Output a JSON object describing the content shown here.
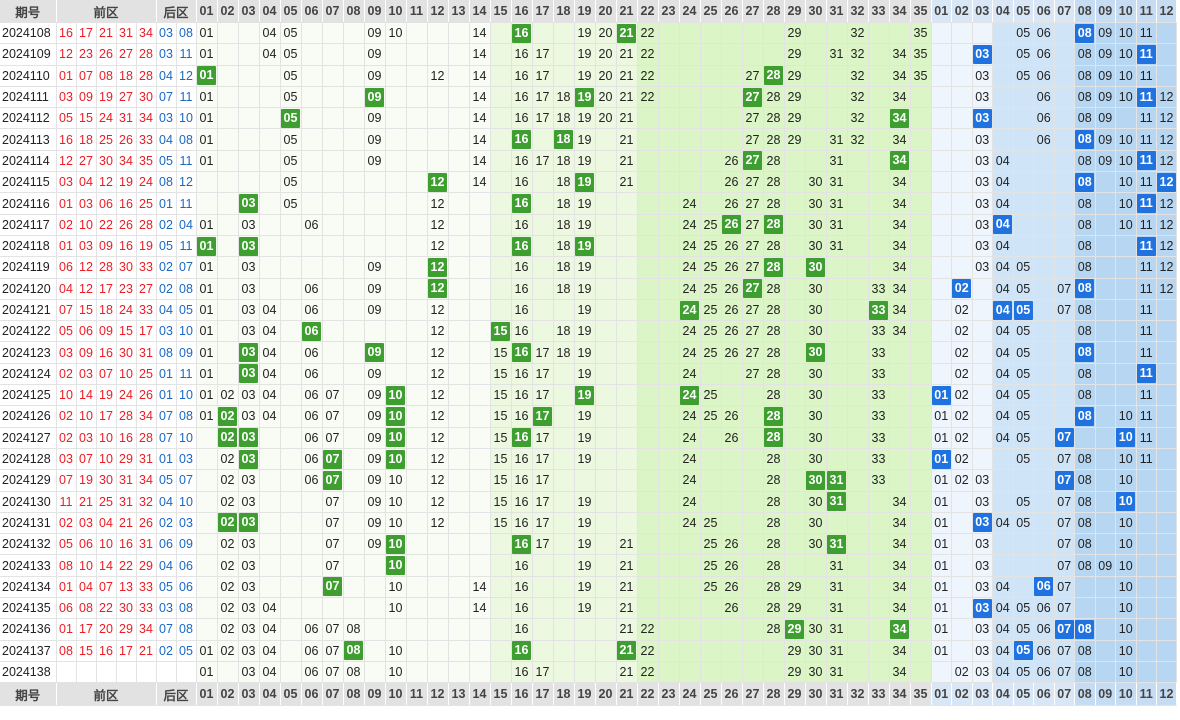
{
  "header": {
    "period": "期号",
    "front": "前区",
    "back": "后区"
  },
  "front_numbers": [
    "01",
    "02",
    "03",
    "04",
    "05",
    "06",
    "07",
    "08",
    "09",
    "10",
    "11",
    "12",
    "13",
    "14",
    "15",
    "16",
    "17",
    "18",
    "19",
    "20",
    "21",
    "22",
    "23",
    "24",
    "25",
    "26",
    "27",
    "28",
    "29",
    "30",
    "31",
    "32",
    "33",
    "34",
    "35"
  ],
  "back_numbers": [
    "01",
    "02",
    "03",
    "04",
    "05",
    "06",
    "07",
    "08",
    "09",
    "10",
    "11",
    "12"
  ],
  "draws": [
    {
      "period": "2024108",
      "front": [
        "16",
        "17",
        "21",
        "31",
        "34"
      ],
      "back": [
        "03",
        "08"
      ],
      "fd": [
        "01",
        "04",
        "05",
        "09",
        "10",
        "14",
        "16",
        "19",
        "20",
        "21",
        "22",
        "29",
        "32",
        "35"
      ],
      "fh": [
        "16",
        "21"
      ],
      "bd": [
        "05",
        "06",
        "08",
        "09",
        "10",
        "11"
      ],
      "bh": [
        "08"
      ]
    },
    {
      "period": "2024109",
      "front": [
        "12",
        "23",
        "26",
        "27",
        "28"
      ],
      "back": [
        "03",
        "11"
      ],
      "fd": [
        "01",
        "04",
        "05",
        "09",
        "14",
        "16",
        "17",
        "19",
        "20",
        "21",
        "22",
        "29",
        "31",
        "32",
        "34",
        "35"
      ],
      "fh": [],
      "bd": [
        "03",
        "05",
        "06",
        "08",
        "09",
        "10",
        "11"
      ],
      "bh": [
        "03",
        "11"
      ]
    },
    {
      "period": "2024110",
      "front": [
        "01",
        "07",
        "08",
        "18",
        "28"
      ],
      "back": [
        "04",
        "12"
      ],
      "fd": [
        "01",
        "05",
        "09",
        "12",
        "14",
        "16",
        "17",
        "19",
        "20",
        "21",
        "22",
        "27",
        "28",
        "29",
        "32",
        "34",
        "35"
      ],
      "fh": [
        "01",
        "28"
      ],
      "bd": [
        "03",
        "05",
        "06",
        "08",
        "09",
        "10",
        "11"
      ],
      "bh": []
    },
    {
      "period": "2024111",
      "front": [
        "03",
        "09",
        "19",
        "27",
        "30"
      ],
      "back": [
        "07",
        "11"
      ],
      "fd": [
        "01",
        "05",
        "09",
        "14",
        "16",
        "17",
        "18",
        "19",
        "20",
        "21",
        "22",
        "27",
        "28",
        "29",
        "32",
        "34"
      ],
      "fh": [
        "09",
        "19",
        "27"
      ],
      "bd": [
        "03",
        "06",
        "08",
        "09",
        "10",
        "11",
        "12"
      ],
      "bh": [
        "11"
      ]
    },
    {
      "period": "2024112",
      "front": [
        "05",
        "15",
        "24",
        "31",
        "34"
      ],
      "back": [
        "03",
        "10"
      ],
      "fd": [
        "01",
        "05",
        "09",
        "14",
        "16",
        "17",
        "18",
        "19",
        "20",
        "21",
        "27",
        "28",
        "29",
        "32",
        "34"
      ],
      "fh": [
        "05",
        "34"
      ],
      "bd": [
        "03",
        "06",
        "08",
        "09",
        "11",
        "12"
      ],
      "bh": [
        "03"
      ]
    },
    {
      "period": "2024113",
      "front": [
        "16",
        "18",
        "25",
        "26",
        "33"
      ],
      "back": [
        "04",
        "08"
      ],
      "fd": [
        "01",
        "05",
        "09",
        "14",
        "16",
        "18",
        "19",
        "21",
        "27",
        "28",
        "29",
        "31",
        "32",
        "34"
      ],
      "fh": [
        "16",
        "18"
      ],
      "bd": [
        "03",
        "06",
        "08",
        "09",
        "10",
        "11",
        "12"
      ],
      "bh": [
        "08"
      ]
    },
    {
      "period": "2024114",
      "front": [
        "12",
        "27",
        "30",
        "34",
        "35"
      ],
      "back": [
        "05",
        "11"
      ],
      "fd": [
        "01",
        "05",
        "09",
        "14",
        "16",
        "17",
        "18",
        "19",
        "21",
        "26",
        "27",
        "28",
        "31",
        "34"
      ],
      "fh": [
        "27",
        "34"
      ],
      "bd": [
        "03",
        "04",
        "08",
        "09",
        "10",
        "11",
        "12"
      ],
      "bh": [
        "11"
      ]
    },
    {
      "period": "2024115",
      "front": [
        "03",
        "04",
        "12",
        "19",
        "24"
      ],
      "back": [
        "08",
        "12"
      ],
      "fd": [
        "05",
        "12",
        "14",
        "16",
        "18",
        "19",
        "21",
        "26",
        "27",
        "28",
        "30",
        "31",
        "34"
      ],
      "fh": [
        "12",
        "19"
      ],
      "bd": [
        "03",
        "04",
        "08",
        "10",
        "11",
        "12"
      ],
      "bh": [
        "08",
        "12"
      ]
    },
    {
      "period": "2024116",
      "front": [
        "01",
        "03",
        "06",
        "16",
        "25"
      ],
      "back": [
        "01",
        "11"
      ],
      "fd": [
        "03",
        "05",
        "12",
        "16",
        "18",
        "19",
        "24",
        "26",
        "27",
        "28",
        "30",
        "31",
        "34"
      ],
      "fh": [
        "03",
        "16"
      ],
      "bd": [
        "03",
        "04",
        "08",
        "10",
        "11",
        "12"
      ],
      "bh": [
        "11"
      ]
    },
    {
      "period": "2024117",
      "front": [
        "02",
        "10",
        "22",
        "26",
        "28"
      ],
      "back": [
        "02",
        "04"
      ],
      "fd": [
        "01",
        "03",
        "06",
        "12",
        "16",
        "18",
        "19",
        "24",
        "25",
        "26",
        "27",
        "28",
        "30",
        "31",
        "34"
      ],
      "fh": [
        "26",
        "28"
      ],
      "bd": [
        "03",
        "04",
        "08",
        "10",
        "11",
        "12"
      ],
      "bh": [
        "04"
      ]
    },
    {
      "period": "2024118",
      "front": [
        "01",
        "03",
        "09",
        "16",
        "19"
      ],
      "back": [
        "05",
        "11"
      ],
      "fd": [
        "01",
        "03",
        "12",
        "16",
        "18",
        "19",
        "24",
        "25",
        "26",
        "27",
        "28",
        "30",
        "31",
        "34"
      ],
      "fh": [
        "01",
        "03",
        "16",
        "19"
      ],
      "bd": [
        "03",
        "04",
        "08",
        "11",
        "12"
      ],
      "bh": [
        "11"
      ]
    },
    {
      "period": "2024119",
      "front": [
        "06",
        "12",
        "28",
        "30",
        "33"
      ],
      "back": [
        "02",
        "07"
      ],
      "fd": [
        "01",
        "03",
        "09",
        "12",
        "16",
        "18",
        "19",
        "24",
        "25",
        "26",
        "27",
        "28",
        "30",
        "34"
      ],
      "fh": [
        "12",
        "28",
        "30"
      ],
      "bd": [
        "03",
        "04",
        "05",
        "08",
        "11",
        "12"
      ],
      "bh": []
    },
    {
      "period": "2024120",
      "front": [
        "04",
        "12",
        "17",
        "23",
        "27"
      ],
      "back": [
        "02",
        "08"
      ],
      "fd": [
        "01",
        "03",
        "06",
        "09",
        "12",
        "16",
        "18",
        "19",
        "24",
        "25",
        "26",
        "27",
        "28",
        "30",
        "33",
        "34"
      ],
      "fh": [
        "12",
        "27"
      ],
      "bd": [
        "02",
        "04",
        "05",
        "07",
        "08",
        "11",
        "12"
      ],
      "bh": [
        "02",
        "08"
      ]
    },
    {
      "period": "2024121",
      "front": [
        "07",
        "15",
        "18",
        "24",
        "33"
      ],
      "back": [
        "04",
        "05"
      ],
      "fd": [
        "01",
        "03",
        "04",
        "06",
        "09",
        "12",
        "16",
        "19",
        "24",
        "25",
        "26",
        "27",
        "28",
        "30",
        "33",
        "34"
      ],
      "fh": [
        "24",
        "33"
      ],
      "bd": [
        "02",
        "04",
        "05",
        "07",
        "08",
        "11"
      ],
      "bh": [
        "04",
        "05"
      ]
    },
    {
      "period": "2024122",
      "front": [
        "05",
        "06",
        "09",
        "15",
        "17"
      ],
      "back": [
        "03",
        "10"
      ],
      "fd": [
        "01",
        "03",
        "04",
        "06",
        "12",
        "15",
        "16",
        "18",
        "19",
        "24",
        "25",
        "26",
        "27",
        "28",
        "30",
        "33",
        "34"
      ],
      "fh": [
        "06",
        "15"
      ],
      "bd": [
        "02",
        "04",
        "05",
        "08",
        "11"
      ],
      "bh": []
    },
    {
      "period": "2024123",
      "front": [
        "03",
        "09",
        "16",
        "30",
        "31"
      ],
      "back": [
        "08",
        "09"
      ],
      "fd": [
        "01",
        "03",
        "04",
        "06",
        "09",
        "12",
        "15",
        "16",
        "17",
        "18",
        "19",
        "24",
        "25",
        "26",
        "27",
        "28",
        "30",
        "33"
      ],
      "fh": [
        "03",
        "09",
        "16",
        "30"
      ],
      "bd": [
        "02",
        "04",
        "05",
        "08",
        "11"
      ],
      "bh": [
        "08"
      ]
    },
    {
      "period": "2024124",
      "front": [
        "02",
        "03",
        "07",
        "10",
        "25"
      ],
      "back": [
        "01",
        "11"
      ],
      "fd": [
        "01",
        "03",
        "04",
        "06",
        "09",
        "12",
        "15",
        "16",
        "17",
        "19",
        "24",
        "27",
        "28",
        "30",
        "33"
      ],
      "fh": [
        "03"
      ],
      "bd": [
        "02",
        "04",
        "05",
        "08",
        "11"
      ],
      "bh": [
        "11"
      ]
    },
    {
      "period": "2024125",
      "front": [
        "10",
        "14",
        "19",
        "24",
        "26"
      ],
      "back": [
        "01",
        "10"
      ],
      "fd": [
        "01",
        "02",
        "03",
        "04",
        "06",
        "07",
        "09",
        "10",
        "12",
        "15",
        "16",
        "17",
        "19",
        "24",
        "25",
        "28",
        "30",
        "33"
      ],
      "fh": [
        "10",
        "19",
        "24"
      ],
      "bd": [
        "01",
        "02",
        "04",
        "05",
        "08",
        "11"
      ],
      "bh": [
        "01"
      ]
    },
    {
      "period": "2024126",
      "front": [
        "02",
        "10",
        "17",
        "28",
        "34"
      ],
      "back": [
        "07",
        "08"
      ],
      "fd": [
        "01",
        "02",
        "03",
        "04",
        "06",
        "07",
        "09",
        "10",
        "12",
        "15",
        "16",
        "17",
        "19",
        "24",
        "25",
        "26",
        "28",
        "30",
        "33"
      ],
      "fh": [
        "02",
        "10",
        "17",
        "28"
      ],
      "bd": [
        "01",
        "02",
        "04",
        "05",
        "08",
        "10",
        "11"
      ],
      "bh": [
        "08"
      ]
    },
    {
      "period": "2024127",
      "front": [
        "02",
        "03",
        "10",
        "16",
        "28"
      ],
      "back": [
        "07",
        "10"
      ],
      "fd": [
        "02",
        "03",
        "06",
        "07",
        "09",
        "10",
        "12",
        "15",
        "16",
        "17",
        "19",
        "24",
        "26",
        "28",
        "30",
        "33"
      ],
      "fh": [
        "02",
        "03",
        "10",
        "16",
        "28"
      ],
      "bd": [
        "01",
        "02",
        "04",
        "05",
        "07",
        "10",
        "11"
      ],
      "bh": [
        "07",
        "10"
      ]
    },
    {
      "period": "2024128",
      "front": [
        "03",
        "07",
        "10",
        "29",
        "31"
      ],
      "back": [
        "01",
        "03"
      ],
      "fd": [
        "02",
        "03",
        "06",
        "07",
        "09",
        "10",
        "12",
        "15",
        "16",
        "17",
        "19",
        "24",
        "28",
        "30",
        "33"
      ],
      "fh": [
        "03",
        "07",
        "10"
      ],
      "bd": [
        "01",
        "02",
        "05",
        "07",
        "08",
        "10",
        "11"
      ],
      "bh": [
        "01"
      ]
    },
    {
      "period": "2024129",
      "front": [
        "07",
        "19",
        "30",
        "31",
        "34"
      ],
      "back": [
        "05",
        "07"
      ],
      "fd": [
        "02",
        "03",
        "06",
        "07",
        "09",
        "10",
        "12",
        "15",
        "16",
        "17",
        "24",
        "28",
        "30",
        "31",
        "33"
      ],
      "fh": [
        "07",
        "30",
        "31"
      ],
      "bd": [
        "01",
        "02",
        "03",
        "07",
        "08",
        "10"
      ],
      "bh": [
        "07"
      ]
    },
    {
      "period": "2024130",
      "front": [
        "11",
        "21",
        "25",
        "31",
        "32"
      ],
      "back": [
        "04",
        "10"
      ],
      "fd": [
        "02",
        "03",
        "07",
        "09",
        "10",
        "12",
        "15",
        "16",
        "17",
        "19",
        "24",
        "28",
        "30",
        "31",
        "34"
      ],
      "fh": [
        "31"
      ],
      "bd": [
        "01",
        "03",
        "05",
        "07",
        "08",
        "10"
      ],
      "bh": [
        "10"
      ]
    },
    {
      "period": "2024131",
      "front": [
        "02",
        "03",
        "04",
        "21",
        "26"
      ],
      "back": [
        "02",
        "03"
      ],
      "fd": [
        "02",
        "03",
        "07",
        "09",
        "10",
        "12",
        "15",
        "16",
        "17",
        "19",
        "24",
        "25",
        "28",
        "30",
        "34"
      ],
      "fh": [
        "02",
        "03"
      ],
      "bd": [
        "01",
        "03",
        "04",
        "05",
        "07",
        "08",
        "10"
      ],
      "bh": [
        "03"
      ]
    },
    {
      "period": "2024132",
      "front": [
        "05",
        "06",
        "10",
        "16",
        "31"
      ],
      "back": [
        "06",
        "09"
      ],
      "fd": [
        "02",
        "03",
        "07",
        "09",
        "10",
        "16",
        "17",
        "19",
        "21",
        "25",
        "26",
        "28",
        "30",
        "31",
        "34"
      ],
      "fh": [
        "10",
        "16",
        "31"
      ],
      "bd": [
        "01",
        "03",
        "07",
        "08",
        "10"
      ],
      "bh": []
    },
    {
      "period": "2024133",
      "front": [
        "08",
        "10",
        "14",
        "22",
        "29"
      ],
      "back": [
        "04",
        "06"
      ],
      "fd": [
        "02",
        "03",
        "07",
        "10",
        "16",
        "19",
        "21",
        "25",
        "26",
        "28",
        "31",
        "34"
      ],
      "fh": [
        "10"
      ],
      "bd": [
        "01",
        "03",
        "07",
        "08",
        "09",
        "10"
      ],
      "bh": []
    },
    {
      "period": "2024134",
      "front": [
        "01",
        "04",
        "07",
        "13",
        "33"
      ],
      "back": [
        "05",
        "06"
      ],
      "fd": [
        "02",
        "03",
        "07",
        "10",
        "14",
        "16",
        "19",
        "21",
        "25",
        "26",
        "28",
        "29",
        "31",
        "34"
      ],
      "fh": [
        "07"
      ],
      "bd": [
        "01",
        "03",
        "04",
        "06",
        "07",
        "10"
      ],
      "bh": [
        "06"
      ]
    },
    {
      "period": "2024135",
      "front": [
        "06",
        "08",
        "22",
        "30",
        "33"
      ],
      "back": [
        "03",
        "08"
      ],
      "fd": [
        "02",
        "03",
        "04",
        "10",
        "14",
        "16",
        "19",
        "21",
        "26",
        "28",
        "29",
        "31",
        "34"
      ],
      "fh": [],
      "bd": [
        "01",
        "03",
        "04",
        "05",
        "06",
        "07",
        "10"
      ],
      "bh": [
        "03"
      ]
    },
    {
      "period": "2024136",
      "front": [
        "01",
        "17",
        "20",
        "29",
        "34"
      ],
      "back": [
        "07",
        "08"
      ],
      "fd": [
        "02",
        "03",
        "04",
        "06",
        "07",
        "08",
        "16",
        "21",
        "22",
        "28",
        "29",
        "30",
        "31",
        "34"
      ],
      "fh": [
        "29",
        "34"
      ],
      "bd": [
        "01",
        "03",
        "04",
        "05",
        "06",
        "07",
        "08",
        "10"
      ],
      "bh": [
        "07",
        "08"
      ]
    },
    {
      "period": "2024137",
      "front": [
        "08",
        "15",
        "16",
        "17",
        "21"
      ],
      "back": [
        "02",
        "05"
      ],
      "fd": [
        "01",
        "02",
        "03",
        "04",
        "06",
        "07",
        "08",
        "10",
        "16",
        "21",
        "22",
        "29",
        "30",
        "31",
        "34"
      ],
      "fh": [
        "08",
        "16",
        "21"
      ],
      "bd": [
        "01",
        "03",
        "04",
        "05",
        "06",
        "07",
        "08",
        "10"
      ],
      "bh": [
        "05"
      ]
    },
    {
      "period": "2024138",
      "front": [],
      "back": [],
      "fd": [
        "01",
        "03",
        "04",
        "06",
        "07",
        "08",
        "10",
        "16",
        "17",
        "21",
        "22",
        "29",
        "30",
        "31",
        "34"
      ],
      "fh": [],
      "bd": [
        "02",
        "03",
        "04",
        "05",
        "06",
        "07",
        "08",
        "10"
      ],
      "bh": []
    }
  ]
}
